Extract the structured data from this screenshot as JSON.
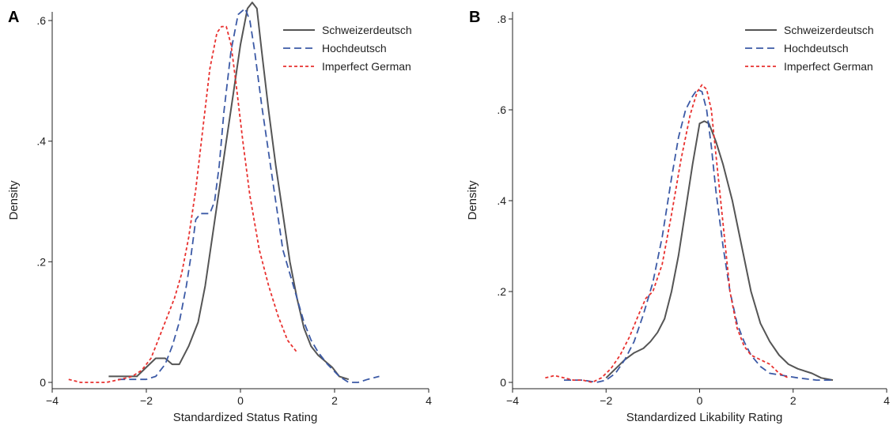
{
  "colors": {
    "schweizerdeutsch": "#555555",
    "hochdeutsch": "#3c5aa6",
    "imperfect": "#e8312f"
  },
  "chart_data": [
    {
      "type": "line",
      "panel_label": "A",
      "xlabel": "Standardized Status Rating",
      "ylabel": "Density",
      "xlim": [
        -4,
        4
      ],
      "ylim": [
        0,
        0.6
      ],
      "x_ticks": [
        -4,
        -2,
        0,
        2,
        4
      ],
      "x_tick_labels": [
        "−4",
        "−2",
        "0",
        "2",
        "4"
      ],
      "y_ticks": [
        0,
        0.2,
        0.4,
        0.6
      ],
      "y_tick_labels": [
        "0",
        ".2",
        ".4",
        ".6"
      ],
      "legend_position": "top-right",
      "series": [
        {
          "name": "Schweizerdeutsch",
          "style": "solid",
          "color": "#555555",
          "x": [
            -2.8,
            -2.5,
            -2.2,
            -2.0,
            -1.8,
            -1.6,
            -1.45,
            -1.3,
            -1.1,
            -0.9,
            -0.75,
            -0.6,
            -0.45,
            -0.3,
            -0.15,
            0.0,
            0.15,
            0.25,
            0.35,
            0.45,
            0.6,
            0.75,
            0.9,
            1.05,
            1.2,
            1.35,
            1.5,
            1.65,
            1.8,
            1.95,
            2.1,
            2.3
          ],
          "y": [
            0.01,
            0.01,
            0.01,
            0.025,
            0.04,
            0.04,
            0.03,
            0.03,
            0.06,
            0.1,
            0.16,
            0.24,
            0.32,
            0.4,
            0.48,
            0.56,
            0.62,
            0.63,
            0.62,
            0.55,
            0.45,
            0.36,
            0.28,
            0.2,
            0.14,
            0.09,
            0.06,
            0.045,
            0.035,
            0.025,
            0.01,
            0.005
          ]
        },
        {
          "name": "Hochdeutsch",
          "style": "dashed",
          "color": "#3c5aa6",
          "x": [
            -2.6,
            -2.3,
            -2.0,
            -1.8,
            -1.6,
            -1.45,
            -1.3,
            -1.15,
            -1.05,
            -0.95,
            -0.85,
            -0.75,
            -0.65,
            -0.55,
            -0.45,
            -0.35,
            -0.2,
            -0.05,
            0.1,
            0.2,
            0.3,
            0.45,
            0.6,
            0.75,
            0.9,
            1.05,
            1.2,
            1.35,
            1.5,
            1.65,
            1.85,
            2.1,
            2.3,
            2.5,
            2.7,
            2.95
          ],
          "y": [
            0.005,
            0.005,
            0.005,
            0.01,
            0.03,
            0.06,
            0.1,
            0.16,
            0.21,
            0.27,
            0.28,
            0.28,
            0.28,
            0.3,
            0.36,
            0.45,
            0.55,
            0.61,
            0.62,
            0.6,
            0.55,
            0.46,
            0.38,
            0.3,
            0.22,
            0.18,
            0.14,
            0.1,
            0.07,
            0.05,
            0.03,
            0.01,
            0.0,
            0.0,
            0.005,
            0.01
          ]
        },
        {
          "name": "Imperfect German",
          "style": "dotted",
          "color": "#e8312f",
          "x": [
            -3.65,
            -3.4,
            -3.1,
            -2.85,
            -2.55,
            -2.3,
            -2.1,
            -1.9,
            -1.75,
            -1.55,
            -1.4,
            -1.25,
            -1.1,
            -0.95,
            -0.8,
            -0.65,
            -0.5,
            -0.4,
            -0.3,
            -0.2,
            -0.1,
            0.05,
            0.2,
            0.4,
            0.6,
            0.8,
            1.0,
            1.2
          ],
          "y": [
            0.005,
            0.0,
            0.0,
            0.0,
            0.005,
            0.01,
            0.02,
            0.04,
            0.07,
            0.11,
            0.14,
            0.18,
            0.24,
            0.32,
            0.42,
            0.52,
            0.58,
            0.59,
            0.59,
            0.56,
            0.5,
            0.4,
            0.31,
            0.22,
            0.16,
            0.11,
            0.07,
            0.05
          ]
        }
      ]
    },
    {
      "type": "line",
      "panel_label": "B",
      "xlabel": "Standardized Likability Rating",
      "ylabel": "Density",
      "xlim": [
        -4,
        4
      ],
      "ylim": [
        0,
        0.8
      ],
      "x_ticks": [
        -4,
        -2,
        0,
        2,
        4
      ],
      "x_tick_labels": [
        "−4",
        "−2",
        "0",
        "2",
        "4"
      ],
      "y_ticks": [
        0,
        0.2,
        0.4,
        0.6,
        0.8
      ],
      "y_tick_labels": [
        "0",
        ".2",
        ".4",
        ".6",
        ".8"
      ],
      "legend_position": "top-right",
      "series": [
        {
          "name": "Schweizerdeutsch",
          "style": "solid",
          "color": "#555555",
          "x": [
            -2.0,
            -1.8,
            -1.6,
            -1.4,
            -1.2,
            -1.05,
            -0.9,
            -0.75,
            -0.6,
            -0.45,
            -0.3,
            -0.15,
            0.0,
            0.1,
            0.2,
            0.35,
            0.5,
            0.7,
            0.9,
            1.1,
            1.3,
            1.5,
            1.7,
            1.9,
            2.1,
            2.4,
            2.6,
            2.85
          ],
          "y": [
            0.01,
            0.03,
            0.05,
            0.065,
            0.075,
            0.09,
            0.11,
            0.14,
            0.2,
            0.28,
            0.38,
            0.48,
            0.57,
            0.575,
            0.57,
            0.53,
            0.48,
            0.4,
            0.3,
            0.2,
            0.13,
            0.09,
            0.06,
            0.04,
            0.03,
            0.02,
            0.01,
            0.005
          ]
        },
        {
          "name": "Hochdeutsch",
          "style": "dashed",
          "color": "#3c5aa6",
          "x": [
            -2.9,
            -2.5,
            -2.2,
            -2.0,
            -1.8,
            -1.6,
            -1.4,
            -1.2,
            -1.0,
            -0.8,
            -0.6,
            -0.45,
            -0.3,
            -0.15,
            -0.05,
            0.05,
            0.15,
            0.25,
            0.35,
            0.5,
            0.65,
            0.8,
            0.95,
            1.1,
            1.3,
            1.5,
            1.8,
            2.1,
            2.5,
            2.85
          ],
          "y": [
            0.005,
            0.005,
            0.0,
            0.005,
            0.02,
            0.05,
            0.09,
            0.15,
            0.22,
            0.32,
            0.45,
            0.54,
            0.6,
            0.63,
            0.645,
            0.64,
            0.6,
            0.52,
            0.42,
            0.3,
            0.2,
            0.13,
            0.09,
            0.06,
            0.035,
            0.02,
            0.015,
            0.01,
            0.005,
            0.005
          ]
        },
        {
          "name": "Imperfect German",
          "style": "dotted",
          "color": "#e8312f",
          "x": [
            -3.3,
            -3.1,
            -2.9,
            -2.7,
            -2.5,
            -2.3,
            -2.1,
            -1.9,
            -1.7,
            -1.5,
            -1.3,
            -1.15,
            -1.0,
            -0.8,
            -0.6,
            -0.4,
            -0.2,
            -0.05,
            0.05,
            0.15,
            0.25,
            0.35,
            0.5,
            0.65,
            0.8,
            0.95,
            1.1,
            1.3,
            1.5,
            1.7,
            1.9
          ],
          "y": [
            0.01,
            0.015,
            0.01,
            0.005,
            0.005,
            0.0,
            0.01,
            0.03,
            0.06,
            0.1,
            0.15,
            0.185,
            0.2,
            0.26,
            0.37,
            0.49,
            0.59,
            0.64,
            0.655,
            0.645,
            0.6,
            0.5,
            0.35,
            0.2,
            0.12,
            0.08,
            0.06,
            0.05,
            0.04,
            0.02,
            0.01
          ]
        }
      ]
    }
  ]
}
